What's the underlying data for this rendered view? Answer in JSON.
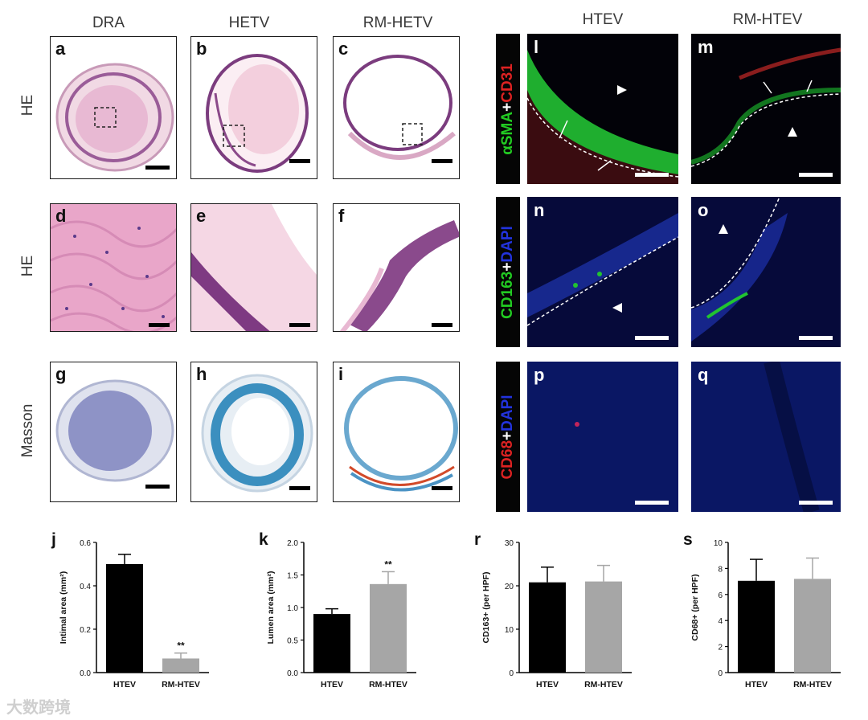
{
  "columns_left": [
    "DRA",
    "HETV",
    "RM-HETV"
  ],
  "columns_right": [
    "HTEV",
    "RM-HTEV"
  ],
  "rows_left": [
    "HE",
    "HE",
    "Masson"
  ],
  "panel_letters": [
    "a",
    "b",
    "c",
    "d",
    "e",
    "f",
    "g",
    "h",
    "i",
    "l",
    "m",
    "n",
    "o",
    "p",
    "q"
  ],
  "stain_labels": {
    "row1": {
      "part1": "αSMA",
      "plus": "+",
      "part2": "CD31",
      "color1": "#22cc22",
      "color2": "#dd2222"
    },
    "row2": {
      "part1": "CD163",
      "plus": "+",
      "part2": "DAPI",
      "color1": "#22cc22",
      "color2": "#2233dd"
    },
    "row3": {
      "part1": "CD68",
      "plus": "+",
      "part2": "DAPI",
      "color1": "#dd2222",
      "color2": "#2233dd"
    }
  },
  "watermark": "大数跨境",
  "chart_data": [
    {
      "panel": "j",
      "type": "bar",
      "categories": [
        "HTEV",
        "RM-HTEV"
      ],
      "values": [
        0.5,
        0.065
      ],
      "errors": [
        0.045,
        0.025
      ],
      "colors": [
        "#000000",
        "#a6a6a6"
      ],
      "ylabel": "Intimal area (mm²)",
      "ylim": [
        0,
        0.6
      ],
      "yticks": [
        "0.0",
        "0.2",
        "0.4",
        "0.6"
      ],
      "significance": [
        "",
        "**"
      ]
    },
    {
      "panel": "k",
      "type": "bar",
      "categories": [
        "HTEV",
        "RM-HTEV"
      ],
      "values": [
        0.9,
        1.36
      ],
      "errors": [
        0.08,
        0.19
      ],
      "colors": [
        "#000000",
        "#a6a6a6"
      ],
      "ylabel": "Lumen area (mm²)",
      "ylim": [
        0,
        2.0
      ],
      "yticks": [
        "0.0",
        "0.5",
        "1.0",
        "1.5",
        "2.0"
      ],
      "significance": [
        "",
        "**"
      ]
    },
    {
      "panel": "r",
      "type": "bar",
      "categories": [
        "HTEV",
        "RM-HTEV"
      ],
      "values": [
        20.8,
        21.0
      ],
      "errors": [
        3.5,
        3.7
      ],
      "colors": [
        "#000000",
        "#a6a6a6"
      ],
      "ylabel": "CD163+ (per HPF)",
      "ylim": [
        0,
        30
      ],
      "yticks": [
        "0",
        "10",
        "20",
        "30"
      ],
      "significance": [
        "",
        ""
      ]
    },
    {
      "panel": "s",
      "type": "bar",
      "categories": [
        "HTEV",
        "RM-HTEV"
      ],
      "values": [
        7.05,
        7.2
      ],
      "errors": [
        1.65,
        1.6
      ],
      "colors": [
        "#000000",
        "#a6a6a6"
      ],
      "ylabel": "CD68+ (per HPF)",
      "ylim": [
        0,
        10
      ],
      "yticks": [
        "0",
        "2",
        "4",
        "6",
        "8",
        "10"
      ],
      "significance": [
        "",
        ""
      ]
    }
  ]
}
